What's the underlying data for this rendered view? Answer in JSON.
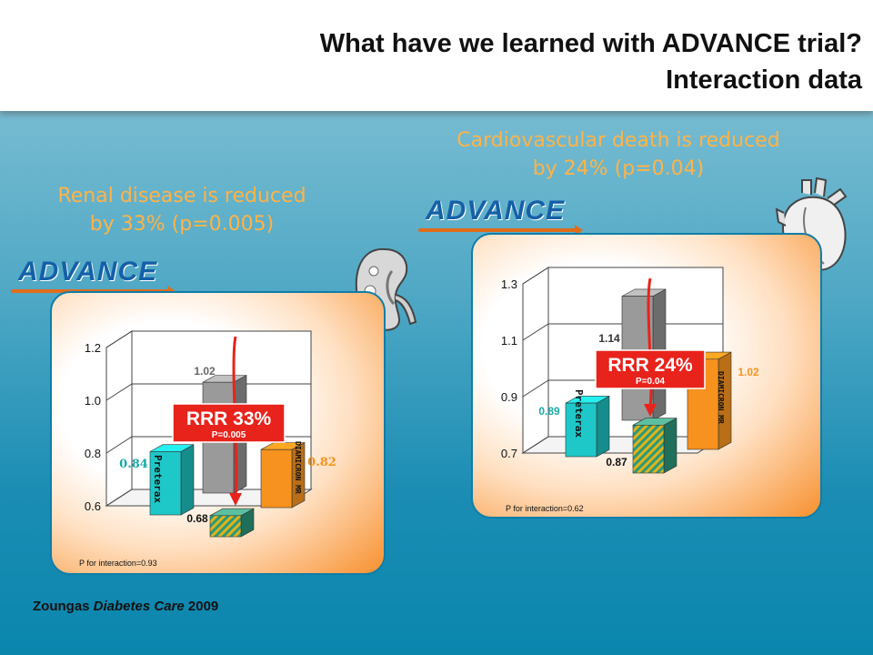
{
  "title": {
    "line1": "What have we learned with ADVANCE trial?",
    "line2": "Interaction data"
  },
  "left": {
    "caption_line1": "Renal disease is reduced",
    "caption_line2": "by 33% (p=0.005)",
    "logo": "ADVANCE",
    "rrr": "RRR 33%",
    "p": "P=0.005",
    "interaction": "P for interaction=0.93",
    "icon": "kidney-icon"
  },
  "right": {
    "caption_line1": "Cardiovascular death is reduced",
    "caption_line2": "by 24% (p=0.04)",
    "logo": "ADVANCE",
    "rrr": "RRR 24%",
    "p": "P=0.04",
    "interaction": "P for interaction=0.62",
    "icon": "heart-icon"
  },
  "source": {
    "author": "Zoungas",
    "journal": "Diabetes Care",
    "year": "2009"
  },
  "colors": {
    "caption": "#ffb347",
    "perindopril": "#1fc8c8",
    "placebo": "#9a9a9a",
    "gliclazide": "#f7921e",
    "combined": "#2aa08a",
    "rrr_box": "#e8231c"
  },
  "chart_data": [
    {
      "type": "bar",
      "title": "Renal disease",
      "ylim": [
        0.6,
        1.2
      ],
      "yticks": [
        "0.6",
        "0.8",
        "1.0",
        "1.2"
      ],
      "bars": [
        {
          "label": "Preterax",
          "value": 0.84,
          "text": "0.84"
        },
        {
          "label": "",
          "value": 1.02,
          "text": "1.02"
        },
        {
          "label": "DIAMICRON MR",
          "value": 0.82,
          "text": "0.82"
        },
        {
          "label": "",
          "value": 0.68,
          "text": "0.68"
        }
      ],
      "annotation": "RRR 33% P=0.005",
      "note": "P for interaction=0.93"
    },
    {
      "type": "bar",
      "title": "Cardiovascular death",
      "ylim": [
        0.7,
        1.3
      ],
      "yticks": [
        "0.7",
        "0.9",
        "1.1",
        "1.3"
      ],
      "bars": [
        {
          "label": "Preterax",
          "value": 0.89,
          "text": "0.89"
        },
        {
          "label": "",
          "value": 1.14,
          "text": "1.14"
        },
        {
          "label": "DIAMICRON MR",
          "value": 1.02,
          "text": "1.02"
        },
        {
          "label": "",
          "value": 0.87,
          "text": "0.87"
        }
      ],
      "annotation": "RRR 24% P=0.04",
      "note": "P for interaction=0.62"
    }
  ]
}
